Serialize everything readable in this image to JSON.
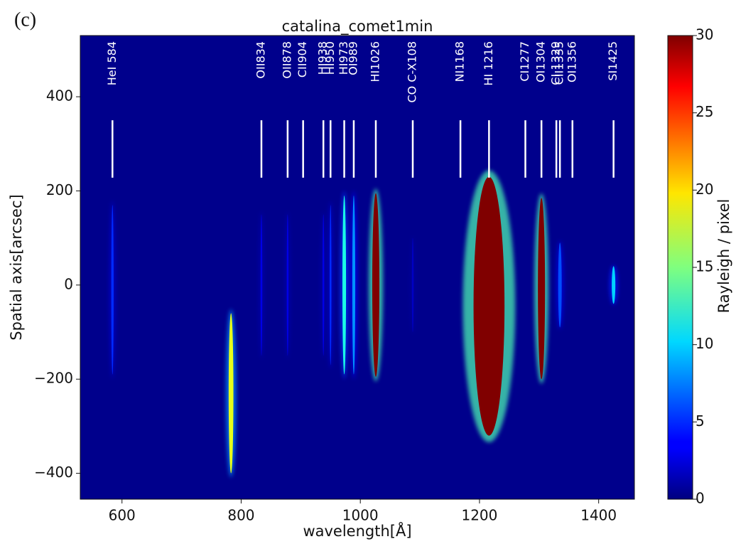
{
  "chart_data": {
    "type": "heatmap",
    "panel": "(c)",
    "title": "catalina_comet1min",
    "x_label": "wavelength[Å]",
    "y_label": "Spatial axis[arcsec]",
    "colorbar_label": "Rayleigh / pixel",
    "xlim": [
      530,
      1460
    ],
    "ylim": [
      -455,
      530
    ],
    "xticks": [
      600,
      800,
      1000,
      1200,
      1400
    ],
    "yticks": [
      {
        "value": -400,
        "label": "−400"
      },
      {
        "value": -200,
        "label": "−200"
      },
      0,
      200,
      400
    ],
    "clim": [
      0,
      30
    ],
    "cticks": [
      0,
      5,
      10,
      15,
      20,
      25,
      30
    ],
    "colormap": "jet",
    "marker_range": [
      228,
      350
    ],
    "lines": [
      {
        "label": "HeI 584",
        "x": 584
      },
      {
        "label": "OII834",
        "x": 834
      },
      {
        "label": "OII878",
        "x": 878
      },
      {
        "label": "CII904",
        "x": 904
      },
      {
        "label": "HI938",
        "x": 938
      },
      {
        "label": "HI950",
        "x": 950
      },
      {
        "label": "HI973",
        "x": 973
      },
      {
        "label": "OI989",
        "x": 989
      },
      {
        "label": "HI1026",
        "x": 1026
      },
      {
        "label": "CO C-X108",
        "x": 1088
      },
      {
        "label": "NI1168",
        "x": 1168
      },
      {
        "label": "HI 1216",
        "x": 1216
      },
      {
        "label": "CI1277",
        "x": 1277
      },
      {
        "label": "OI1304",
        "x": 1304
      },
      {
        "label": "CI 1329",
        "x": 1329
      },
      {
        "label": "CII1335",
        "x": 1335
      },
      {
        "label": "OI1356",
        "x": 1356
      },
      {
        "label": "SI1425",
        "x": 1425
      }
    ],
    "emission": {
      "x": [
        584,
        783,
        834,
        878,
        938,
        950,
        973,
        989,
        1026,
        1088,
        1216,
        1304,
        1335,
        1425
      ],
      "width": [
        4,
        8,
        3,
        3,
        3,
        3,
        6,
        5,
        12,
        3,
        52,
        12,
        6,
        6
      ],
      "ymin": [
        -190,
        -400,
        -150,
        -150,
        -150,
        -170,
        -190,
        -190,
        -195,
        -100,
        -320,
        -200,
        -90,
        -40
      ],
      "ymax": [
        170,
        -60,
        150,
        150,
        150,
        170,
        190,
        190,
        195,
        100,
        230,
        185,
        90,
        40
      ],
      "intensity": [
        5,
        18,
        3,
        3,
        3,
        5,
        12,
        8,
        30,
        2,
        30,
        30,
        6,
        10
      ]
    }
  }
}
